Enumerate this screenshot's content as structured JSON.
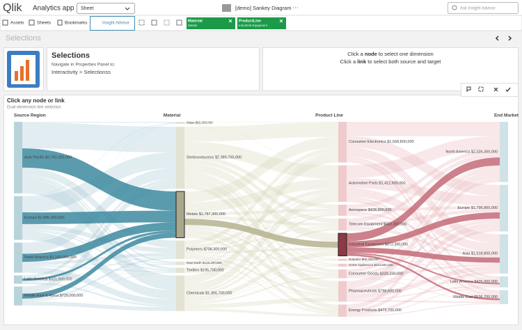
{
  "header": {
    "logo": "Qlik",
    "app_title": "Analytics app",
    "sheet_dropdown": "Sheet",
    "document_title": "[demo] Sankey Diagram",
    "more": "···",
    "search_placeholder": "Ask Insight Advisor"
  },
  "toolbar": {
    "assets": "Assets",
    "sheets": "Sheets",
    "bookmarks": "Bookmarks",
    "insight_advisor": "Insight Advisor",
    "chips": [
      {
        "field": "Material",
        "value": "Metals"
      },
      {
        "field": "ProductLine",
        "value": "Industrial Equipment"
      }
    ]
  },
  "selections_bar": {
    "title": "Selections"
  },
  "info": {
    "title": "Selections",
    "line1": "Navigate in Properties Panel to:",
    "line2": "Interactivity > Selectionss",
    "hint1": [
      "Click a ",
      "node",
      " to select one dimension"
    ],
    "hint2": [
      "Click a ",
      "link",
      " to select both source and target"
    ]
  },
  "sankey": {
    "title": "Click any node or link",
    "subtitle": "Dual-dimension link selection",
    "columns": [
      {
        "header": "Source Region",
        "nodes": [
          {
            "name": "Asia Pacific",
            "value": 2760300000,
            "value_label": "$2,760,300,000"
          },
          {
            "name": "Europe",
            "value": 1686300000,
            "value_label": "$1,686,300,000"
          },
          {
            "name": "North America",
            "value": 1160000000,
            "value_label": "$1,160,000,000"
          },
          {
            "name": "Latin America",
            "value": 321500000,
            "value_label": "$321,500,000"
          },
          {
            "name": "Middle East & Africa",
            "value": 729000000,
            "value_label": "$729,000,000"
          }
        ]
      },
      {
        "header": "Material",
        "nodes": [
          {
            "name": "Glass",
            "value": 82300000,
            "value_label": "$82,300,000"
          },
          {
            "name": "Semiconductors",
            "value": 2389700000,
            "value_label": "$2,389,700,000"
          },
          {
            "name": "Metals",
            "value": 1787300000,
            "value_label": "$1,787,300,000",
            "selected": true
          },
          {
            "name": "Polymers",
            "value": 708300000,
            "value_label": "$708,300,000"
          },
          {
            "name": "Rare Earth",
            "value": 128100000,
            "value_label": "$128,100,000"
          },
          {
            "name": "Textiles",
            "value": 195700000,
            "value_label": "$195,700,000"
          },
          {
            "name": "Chemicals",
            "value": 1366700000,
            "value_label": "$1,366,700,000"
          }
        ]
      },
      {
        "header": "Product Line",
        "nodes": [
          {
            "name": "Consumer Electronics",
            "value": 1568800000,
            "value_label": "$1,568,800,000"
          },
          {
            "name": "Automotive Parts",
            "value": 1412600000,
            "value_label": "$1,412,600,000"
          },
          {
            "name": "Aerospace",
            "value": 428900000,
            "value_label": "$428,900,000"
          },
          {
            "name": "Telecom Equipment",
            "value": 462300000,
            "value_label": "$462,300,000"
          },
          {
            "name": "Industrial Equipment",
            "value": 872300000,
            "value_label": "$872,300,000",
            "selected": true
          },
          {
            "name": "Robotics",
            "value": 86000000,
            "value_label": "$86,000,000"
          },
          {
            "name": "Home Appliances",
            "value": 114600000,
            "value_label": "$114,600,000"
          },
          {
            "name": "Consumer Goods",
            "value": 339200000,
            "value_label": "$339,200,000"
          },
          {
            "name": "Pharmaceuticals",
            "value": 798600000,
            "value_label": "$798,600,000"
          },
          {
            "name": "Energy Products",
            "value": 473700000,
            "value_label": "$473,700,000"
          }
        ]
      },
      {
        "header": "End Market",
        "nodes": [
          {
            "name": "North America",
            "value": 2326300000,
            "value_label": "$2,326,300,000"
          },
          {
            "name": "Europe",
            "value": 1796900000,
            "value_label": "$1,796,900,000"
          },
          {
            "name": "Asia",
            "value": 1518800000,
            "value_label": "$1,518,800,000"
          },
          {
            "name": "Latin America",
            "value": 426900000,
            "value_label": "$426,900,000"
          },
          {
            "name": "Middle East",
            "value": 536700000,
            "value_label": "$536,700,000"
          }
        ]
      }
    ]
  }
}
